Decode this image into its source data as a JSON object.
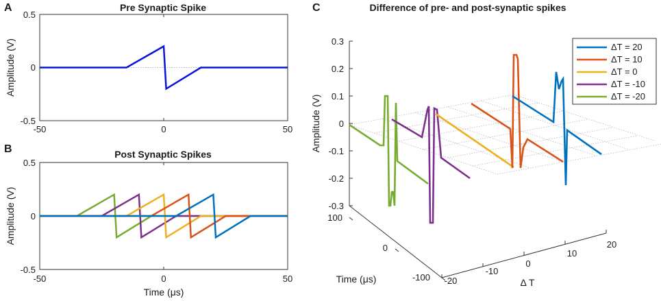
{
  "chart_data": [
    {
      "panel": "A",
      "type": "line",
      "title": "Pre Synaptic Spike",
      "xlabel": "",
      "ylabel": "Amplitude (V)",
      "xlim": [
        -50,
        50
      ],
      "ylim": [
        -0.5,
        0.5
      ],
      "xticks": [
        "-50",
        "0",
        "50"
      ],
      "yticks": [
        "0.5",
        "0",
        "-0.5"
      ],
      "zero_line": true,
      "series": [
        {
          "name": "pre",
          "color": "#0a14d8",
          "x": [
            -50,
            -15,
            0,
            0,
            1,
            15,
            50
          ],
          "y": [
            0,
            0,
            0.2,
            0.2,
            -0.2,
            0,
            0
          ]
        }
      ]
    },
    {
      "panel": "B",
      "type": "line",
      "title": "Post Synaptic Spikes",
      "xlabel": "Time (μs)",
      "ylabel": "Amplitude (V)",
      "xlim": [
        -50,
        50
      ],
      "ylim": [
        -0.5,
        0.5
      ],
      "xticks": [
        "-50",
        "0",
        "50"
      ],
      "yticks": [
        "0.5",
        "0",
        "-0.5"
      ],
      "zero_line": true,
      "series": [
        {
          "name": "ΔT = -20",
          "color": "#77ac30",
          "x": [
            -35,
            -20,
            -19,
            -5
          ],
          "y": [
            0,
            0.2,
            -0.2,
            0
          ]
        },
        {
          "name": "ΔT = -10",
          "color": "#7e2f8e",
          "x": [
            -25,
            -10,
            -9,
            5
          ],
          "y": [
            0,
            0.2,
            -0.2,
            0
          ]
        },
        {
          "name": "ΔT = 0",
          "color": "#edb120",
          "x": [
            -15,
            0,
            1,
            15
          ],
          "y": [
            0,
            0.2,
            -0.2,
            0
          ]
        },
        {
          "name": "ΔT = 10",
          "color": "#d95319",
          "x": [
            -5,
            10,
            11,
            25
          ],
          "y": [
            0,
            0.2,
            -0.2,
            0
          ]
        },
        {
          "name": "ΔT = 20",
          "color": "#0072bd",
          "x": [
            5,
            20,
            21,
            35
          ],
          "y": [
            0,
            0.2,
            -0.2,
            0
          ]
        }
      ]
    },
    {
      "panel": "C",
      "type": "line",
      "title": "Difference of pre- and post-synaptic spikes",
      "xlabel": "Δ T",
      "ylabel": "Time (μs)",
      "zlabel": "Amplitude (V)",
      "xlim": [
        -20,
        20
      ],
      "ylim": [
        -100,
        100
      ],
      "zlim": [
        -0.3,
        0.3
      ],
      "xticks": [
        "-20",
        "-10",
        "0",
        "10",
        "20"
      ],
      "yticks": [
        "100",
        "0",
        "-100"
      ],
      "zticks": [
        "0.3",
        "0.2",
        "0.1",
        "0",
        "-0.1",
        "-0.2",
        "-0.3"
      ],
      "series": [
        {
          "name": "ΔT =  20",
          "color": "#0072bd"
        },
        {
          "name": "ΔT =  10",
          "color": "#d95319"
        },
        {
          "name": "ΔT =   0",
          "color": "#edb120"
        },
        {
          "name": "ΔT = -10",
          "color": "#7e2f8e"
        },
        {
          "name": "ΔT = -20",
          "color": "#77ac30"
        }
      ]
    }
  ]
}
